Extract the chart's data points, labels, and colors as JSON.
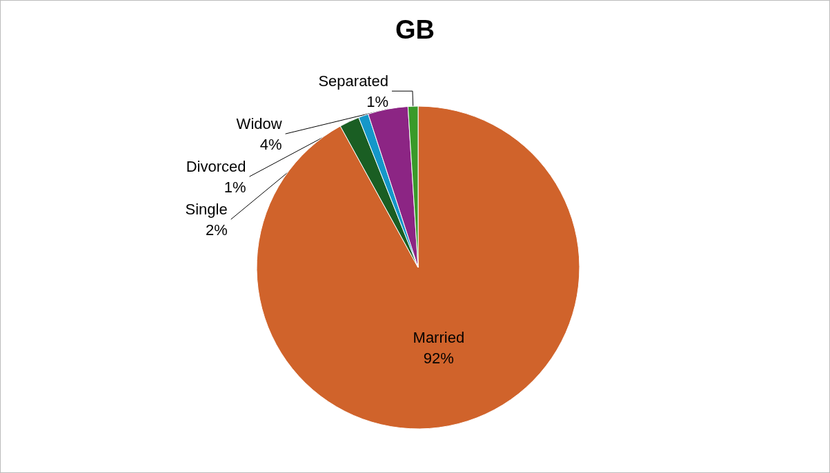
{
  "chart_data": {
    "type": "pie",
    "title": "GB",
    "categories": [
      "Married",
      "Single",
      "Divorced",
      "Widow",
      "Separated"
    ],
    "values": [
      92,
      2,
      1,
      4,
      1
    ],
    "colors": [
      "#d0632b",
      "#1a5e23",
      "#1597c9",
      "#8c2584",
      "#3a9a2a"
    ],
    "value_labels": [
      "92%",
      "2%",
      "1%",
      "4%",
      "1%"
    ],
    "legend": false
  }
}
